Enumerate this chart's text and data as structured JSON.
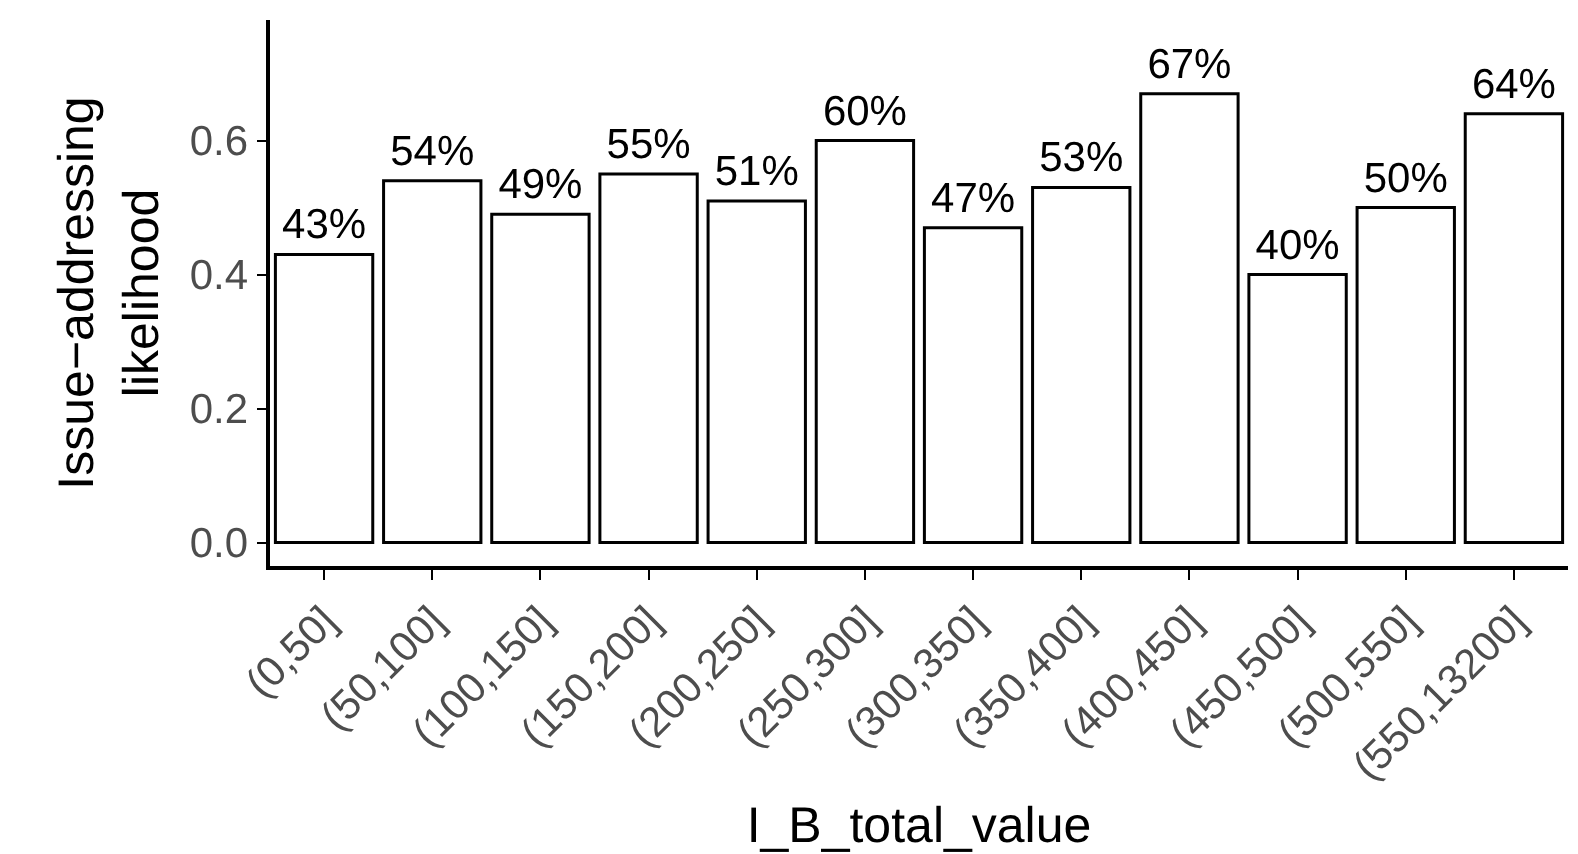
{
  "chart_data": {
    "type": "bar",
    "categories": [
      "(0,50]",
      "(50,100]",
      "(100,150]",
      "(150,200]",
      "(200,250]",
      "(250,300]",
      "(300,350]",
      "(350,400]",
      "(400,450]",
      "(450,500]",
      "(500,550]",
      "(550,13200]"
    ],
    "values": [
      0.43,
      0.54,
      0.49,
      0.55,
      0.51,
      0.6,
      0.47,
      0.53,
      0.67,
      0.4,
      0.5,
      0.64
    ],
    "value_labels": [
      "43%",
      "54%",
      "49%",
      "55%",
      "51%",
      "60%",
      "47%",
      "53%",
      "67%",
      "40%",
      "50%",
      "64%"
    ],
    "color": "#ffffff",
    "xlabel": "I_B_total_value",
    "ylabel": "Issue−addressing\nlikelihood",
    "ylim": [
      -0.035,
      0.78
    ],
    "yticks": [
      "0.0",
      "0.2",
      "0.4",
      "0.6"
    ],
    "grid": false,
    "legend": false
  }
}
